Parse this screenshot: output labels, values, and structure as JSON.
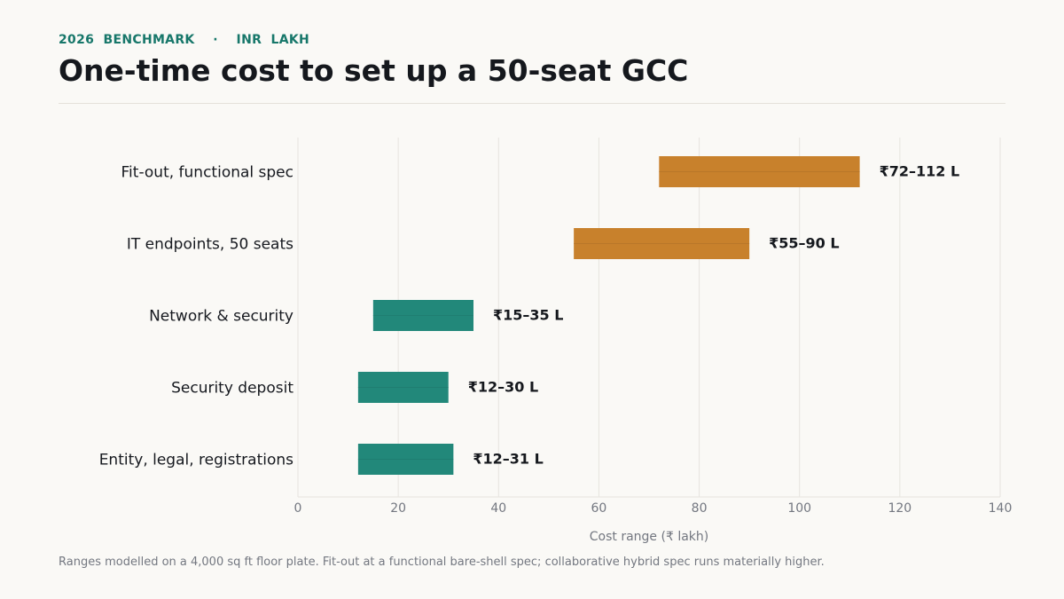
{
  "header": {
    "kicker": "2026  BENCHMARK    ·    INR  LAKH",
    "title": "One-time cost to set up a 50-seat GCC"
  },
  "footnote": "Ranges modelled on a 4,000 sq ft floor plate. Fit-out at a functional bare-shell spec; collaborative hybrid spec runs materially higher.",
  "colors": {
    "teal": "#22887a",
    "orange": "#c8812c",
    "grid": "#e6e4df",
    "background": "#faf9f6"
  },
  "chart_data": {
    "type": "bar",
    "orientation": "horizontal-range",
    "title": "One-time cost to set up a 50-seat GCC",
    "xlabel": "Cost range (₹ lakh)",
    "ylabel": "",
    "xlim": [
      0,
      140
    ],
    "xticks": [
      0,
      20,
      40,
      60,
      80,
      100,
      120,
      140
    ],
    "grid": true,
    "categories": [
      "Fit-out, functional spec",
      "IT endpoints, 50 seats",
      "Network & security",
      "Security deposit",
      "Entity, legal, registrations"
    ],
    "ranges": [
      {
        "low": 72,
        "high": 112,
        "label": "₹72–112 L",
        "color": "orange"
      },
      {
        "low": 55,
        "high": 90,
        "label": "₹55–90 L",
        "color": "orange"
      },
      {
        "low": 15,
        "high": 35,
        "label": "₹15–35 L",
        "color": "teal"
      },
      {
        "low": 12,
        "high": 30,
        "label": "₹12–30 L",
        "color": "teal"
      },
      {
        "low": 12,
        "high": 31,
        "label": "₹12–31 L",
        "color": "teal"
      }
    ]
  }
}
